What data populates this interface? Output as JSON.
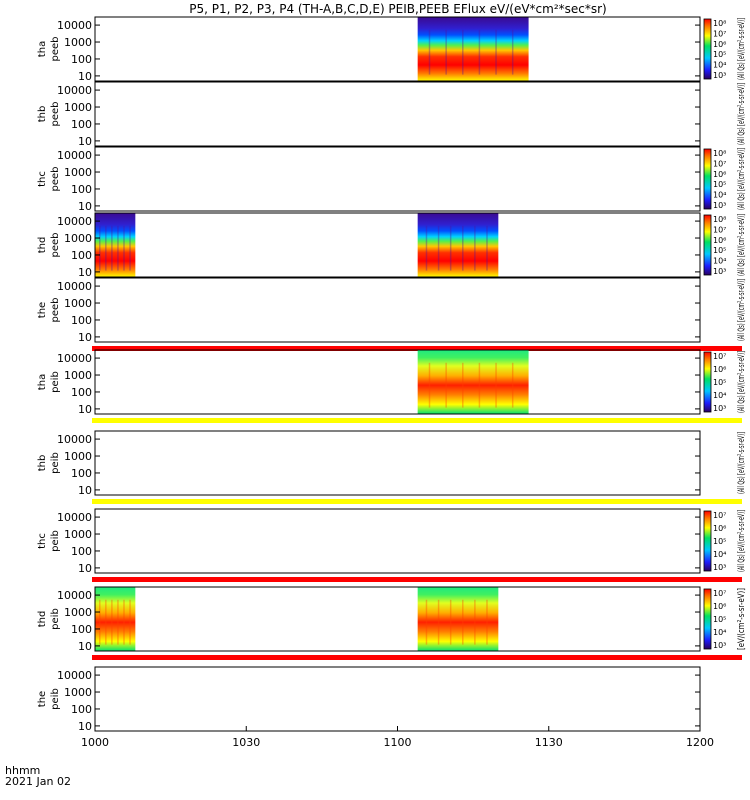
{
  "title": "P5, P1, P2, P3, P4 (TH-A,B,C,D,E) PEIB,PEEB EFlux eV/(eV*cm²*sec*sr)",
  "footer": {
    "x_header": "hhmm",
    "date": "2021 Jan 02"
  },
  "colors": {
    "frame": "#000000",
    "red_band": "#ff0000",
    "yellow_band": "#ffff00"
  },
  "chart_data": {
    "type": "heatmap",
    "x_axis": {
      "range": [
        "1000",
        "1200"
      ],
      "ticks": [
        "1000",
        "1030",
        "1100",
        "1130",
        "1200"
      ]
    },
    "y_ticks": [
      "10",
      "100",
      "1000",
      "10000"
    ],
    "y_scale": "log",
    "panels": [
      {
        "id": "tha-peeb",
        "label1": "tha",
        "label2": "peeb",
        "data": [
          [
            "1104",
            "1126"
          ]
        ],
        "style": "electron",
        "colorbar": {
          "ticks": [
            "10³",
            "10⁴",
            "10⁵",
            "10⁶",
            "10⁷",
            "10⁸"
          ],
          "label": "(All Qs) [eV/(cm²-s-sr-eV)]"
        }
      },
      {
        "id": "thb-peeb",
        "label1": "thb",
        "label2": "peeb",
        "data": [],
        "colorbar": {
          "ticks": [],
          "label": "(All Qs) [eV/(cm²-s-sr-eV)]"
        }
      },
      {
        "id": "thc-peeb",
        "label1": "thc",
        "label2": "peeb",
        "data": [],
        "colorbar": {
          "ticks": [
            "10³",
            "10⁴",
            "10⁵",
            "10⁶",
            "10⁷",
            "10⁸"
          ],
          "label": "(All Qs) [eV/(cm²-s-sr-eV)]"
        }
      },
      {
        "id": "thd-peeb",
        "label1": "thd",
        "label2": "peeb",
        "data": [
          [
            "1000",
            "1008"
          ],
          [
            "1104",
            "1120"
          ]
        ],
        "style": "electron",
        "colorbar": {
          "ticks": [
            "10³",
            "10⁴",
            "10⁵",
            "10⁶",
            "10⁷",
            "10⁸"
          ],
          "label": "(All Qs) [eV/(cm²-s-sr-eV)]"
        }
      },
      {
        "id": "the-peeb",
        "label1": "the",
        "label2": "peeb",
        "data": [],
        "band_below": "red",
        "colorbar": {
          "ticks": [],
          "label": "(All Qs) [eV/(cm²-s-sr-eV)]"
        }
      },
      {
        "id": "tha-peib",
        "label1": "tha",
        "label2": "peib",
        "data": [
          [
            "1104",
            "1126"
          ]
        ],
        "style": "ion",
        "band_below": "yellow",
        "colorbar": {
          "ticks": [
            "10³",
            "10⁴",
            "10⁵",
            "10⁶",
            "10⁷"
          ],
          "label": "(All Qs) [eV/(cm²-s-sr-eV)]"
        }
      },
      {
        "id": "thb-peib",
        "label1": "thb",
        "label2": "peib",
        "data": [],
        "band_below": "yellow",
        "colorbar": {
          "ticks": [],
          "label": "(All Qs) [eV/(cm²-s-sr-eV)]"
        }
      },
      {
        "id": "thc-peib",
        "label1": "thc",
        "label2": "peib",
        "data": [],
        "band_below": "red",
        "colorbar": {
          "ticks": [
            "10³",
            "10⁴",
            "10⁵",
            "10⁶",
            "10⁷"
          ],
          "label": "(All Qs) [eV/(cm²-s-sr-eV)]"
        }
      },
      {
        "id": "thd-peib",
        "label1": "thd",
        "label2": "peib",
        "data": [
          [
            "1000",
            "1008"
          ],
          [
            "1104",
            "1120"
          ]
        ],
        "style": "ion",
        "band_below": "red",
        "colorbar": {
          "ticks": [
            "10³",
            "10⁴",
            "10⁵",
            "10⁶",
            "10⁷"
          ],
          "label": "[eV/(cm²-s-sr-eV)]"
        }
      },
      {
        "id": "the-peib",
        "label1": "the",
        "label2": "peib",
        "data": [],
        "colorbar": {
          "ticks": [],
          "label": ""
        }
      }
    ]
  }
}
